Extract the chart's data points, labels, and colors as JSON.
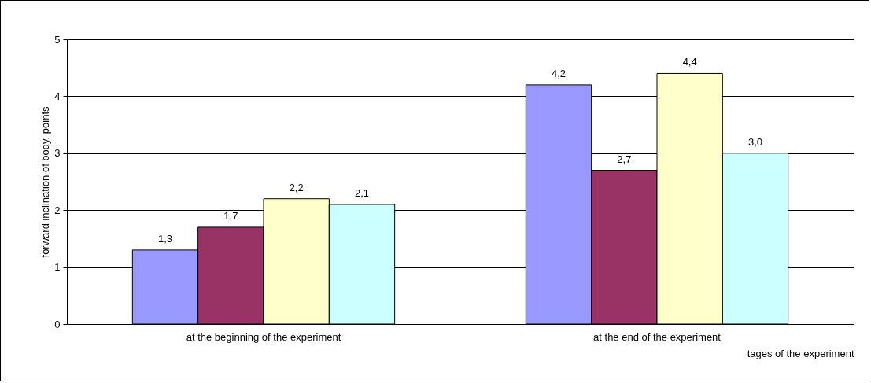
{
  "chart_data": {
    "type": "bar",
    "xlabel": "tages of the experiment",
    "ylabel": "forward inclination of body, points",
    "categories": [
      "at the beginning of the experiment",
      "at the end of the experiment"
    ],
    "series": [
      {
        "color": "#9999ff",
        "values": [
          1.3,
          4.2
        ],
        "value_labels": [
          "1,3",
          "4,2"
        ]
      },
      {
        "color": "#993366",
        "values": [
          1.7,
          2.7
        ],
        "value_labels": [
          "1,7",
          "2,7"
        ]
      },
      {
        "color": "#ffffcc",
        "values": [
          2.2,
          4.4
        ],
        "value_labels": [
          "2,2",
          "4,4"
        ]
      },
      {
        "color": "#ccffff",
        "values": [
          2.1,
          3.0
        ],
        "value_labels": [
          "2,1",
          "3,0"
        ]
      }
    ],
    "ylim": [
      0,
      5
    ],
    "yticks": [
      0,
      1,
      2,
      3,
      4,
      5
    ],
    "grid": "y"
  }
}
